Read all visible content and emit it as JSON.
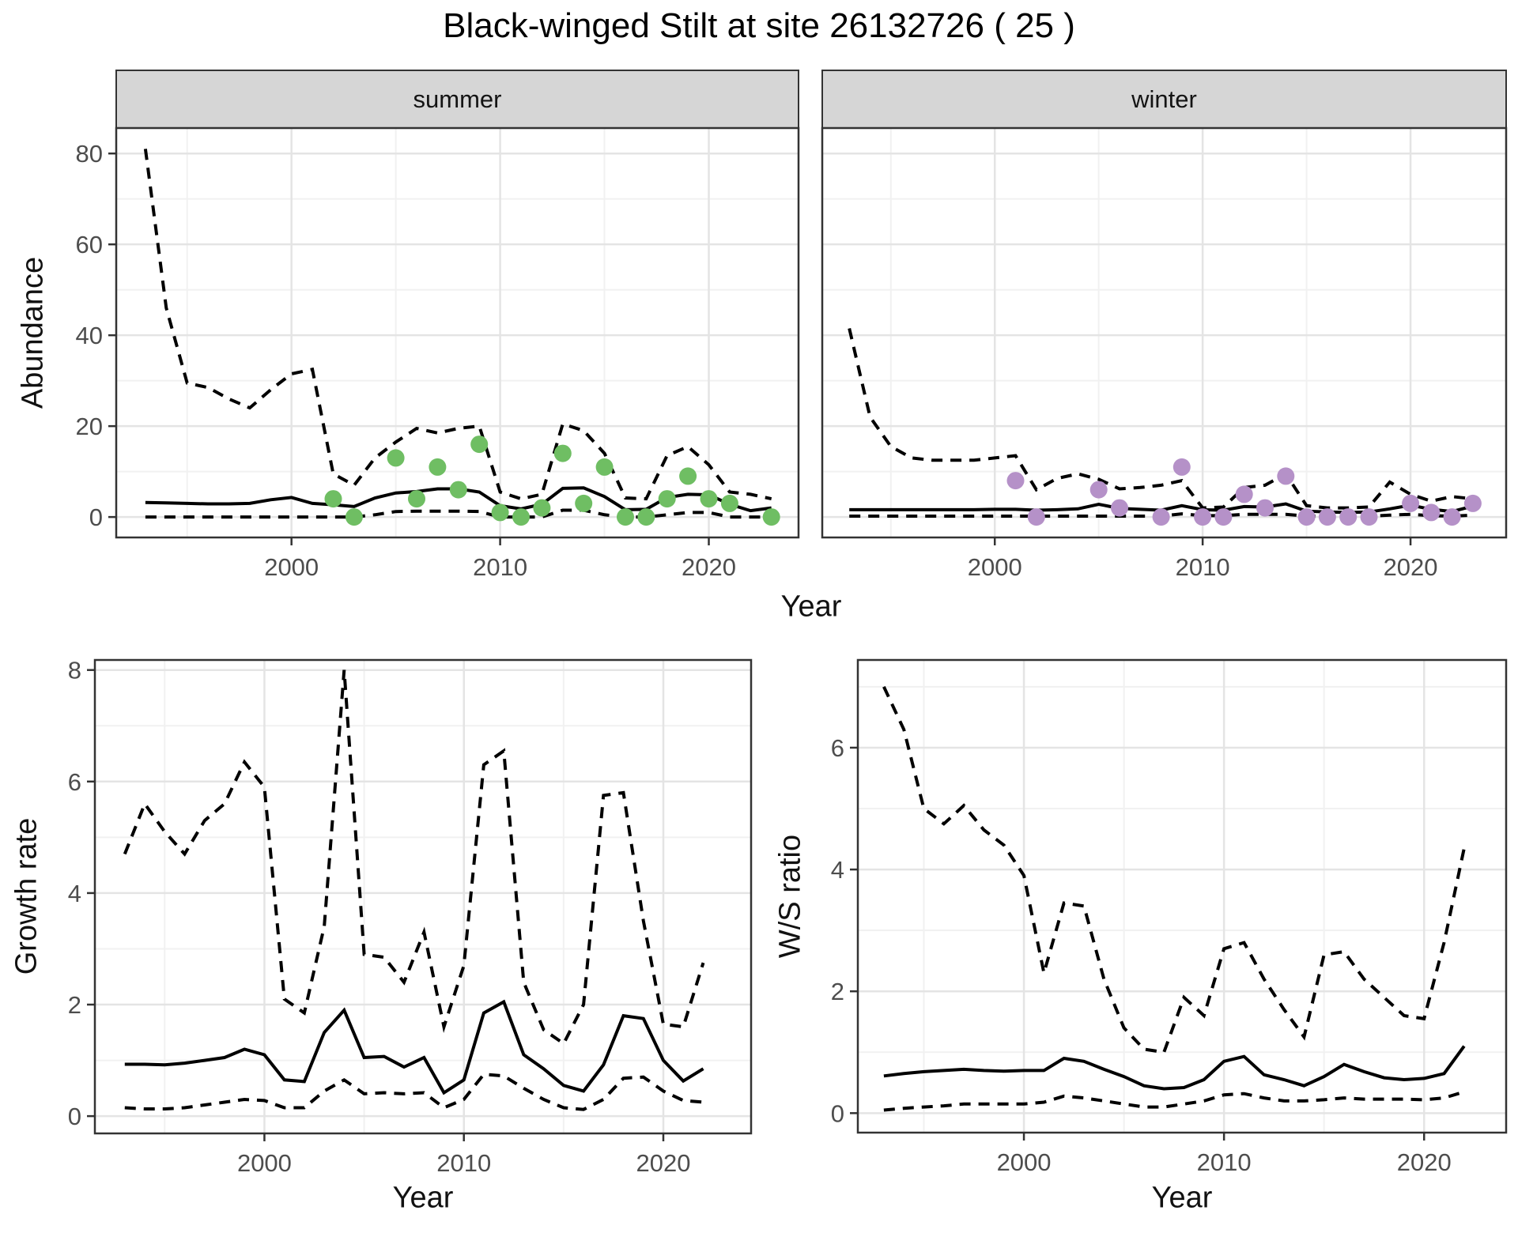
{
  "title": "Black-winged Stilt at site 26132726 ( 25 )",
  "labels": {
    "facet_summer": "summer",
    "facet_winter": "winter",
    "y_abundance": "Abundance",
    "y_growth": "Growth rate",
    "y_ws": "W/S ratio",
    "x_year_top": "Year",
    "x_year_growth": "Year",
    "x_year_ws": "Year"
  },
  "colors": {
    "summer_points": "#6FBE63",
    "winter_points": "#B591C8",
    "line": "#000000",
    "strip_bg": "#D6D6D6",
    "strip_border": "#333333",
    "panel_border": "#333333",
    "grid_major": "#E4E4E4",
    "grid_minor": "#F1F1F1",
    "tick_text": "#4D4D4D",
    "background": "#FFFFFF"
  },
  "chart_data": [
    {
      "id": "abundance_summer",
      "type": "line",
      "facet": "summer",
      "xlabel": "Year",
      "ylabel": "Abundance",
      "xlim": [
        1991.6,
        2024.3
      ],
      "ylim": [
        -4.5,
        85.6
      ],
      "xticks": [
        2000,
        2010,
        2020
      ],
      "xtick_labels": [
        "2000",
        "2010",
        "2020"
      ],
      "x_minor": [
        1995,
        2005,
        2015
      ],
      "yticks": [
        0,
        20,
        40,
        60,
        80
      ],
      "ytick_labels": [
        "0",
        "20",
        "40",
        "60",
        "80"
      ],
      "y_minor": [
        10,
        30,
        50,
        70
      ],
      "x": [
        1993,
        1994,
        1995,
        1996,
        1997,
        1998,
        1999,
        2000,
        2001,
        2002,
        2003,
        2004,
        2005,
        2006,
        2007,
        2008,
        2009,
        2010,
        2011,
        2012,
        2013,
        2014,
        2015,
        2016,
        2017,
        2018,
        2019,
        2020,
        2021,
        2022,
        2023
      ],
      "series": [
        {
          "name": "ci_upper_97.5",
          "style": "dashed",
          "values": [
            81,
            46,
            29.5,
            28.5,
            26,
            24,
            28,
            31.5,
            32.5,
            9.5,
            7,
            13,
            16.5,
            19.5,
            18.5,
            19.5,
            20,
            5.5,
            4,
            5,
            20.5,
            19,
            14,
            4.2,
            4,
            13.5,
            15.5,
            11.5,
            5.5,
            5,
            4
          ]
        },
        {
          "name": "ci_lower_2.5",
          "style": "dashed",
          "values": [
            0,
            0,
            0,
            0,
            0,
            0,
            0,
            0,
            0,
            0,
            0,
            0.5,
            1.2,
            1.3,
            1.3,
            1.3,
            1.2,
            0,
            0,
            0,
            1.5,
            1.5,
            0.5,
            0,
            0,
            0.5,
            1,
            1,
            0,
            0,
            0
          ]
        },
        {
          "name": "median",
          "style": "solid",
          "values": [
            3.2,
            3.1,
            3.0,
            2.9,
            2.9,
            3.0,
            3.8,
            4.3,
            3.0,
            2.7,
            2.3,
            4.2,
            5.3,
            5.6,
            6.2,
            6.2,
            5.5,
            2.5,
            1.8,
            2.8,
            6.3,
            6.4,
            4.5,
            1.6,
            1.7,
            4.3,
            5.0,
            4.9,
            2.8,
            1.4,
            2.0
          ]
        }
      ],
      "points": {
        "name": "observed_counts_summer",
        "color": "#6FBE63",
        "x": [
          2002,
          2003,
          2005,
          2006,
          2007,
          2008,
          2009,
          2010,
          2011,
          2012,
          2013,
          2014,
          2015,
          2016,
          2017,
          2018,
          2019,
          2020,
          2021,
          2023
        ],
        "y": [
          4,
          0,
          13,
          4,
          11,
          6,
          16,
          1,
          0,
          2,
          14,
          3,
          11,
          0,
          0,
          4,
          9,
          4,
          3,
          0
        ]
      }
    },
    {
      "id": "abundance_winter",
      "type": "line",
      "facet": "winter",
      "xlabel": "Year",
      "ylabel": "Abundance",
      "xlim": [
        1991.7,
        2024.6
      ],
      "ylim": [
        -4.5,
        85.6
      ],
      "xticks": [
        2000,
        2010,
        2020
      ],
      "xtick_labels": [
        "2000",
        "2010",
        "2020"
      ],
      "x_minor": [
        1995,
        2005,
        2015
      ],
      "yticks": [
        0,
        20,
        40,
        60,
        80
      ],
      "ytick_labels": [],
      "y_minor": [
        10,
        30,
        50,
        70
      ],
      "x": [
        1993,
        1994,
        1995,
        1996,
        1997,
        1998,
        1999,
        2000,
        2001,
        2002,
        2003,
        2004,
        2005,
        2006,
        2007,
        2008,
        2009,
        2010,
        2011,
        2012,
        2013,
        2014,
        2015,
        2016,
        2017,
        2018,
        2019,
        2020,
        2021,
        2022,
        2023
      ],
      "series": [
        {
          "name": "ci_upper_97.5",
          "style": "dashed",
          "values": [
            41.5,
            22,
            15.5,
            13,
            12.5,
            12.5,
            12.5,
            13,
            13.5,
            6,
            8.5,
            9.5,
            8.3,
            6.2,
            6.5,
            7,
            8,
            2,
            2.2,
            6.5,
            7,
            9.5,
            2.5,
            2,
            2,
            2.2,
            7.7,
            5,
            3.5,
            4.5,
            4
          ]
        },
        {
          "name": "ci_lower_2.5",
          "style": "dashed",
          "values": [
            0.2,
            0.2,
            0.2,
            0.2,
            0.2,
            0.2,
            0.2,
            0.2,
            0.2,
            0.2,
            0.2,
            0.2,
            0.2,
            0.2,
            0.2,
            0.2,
            0.7,
            0.3,
            0.3,
            0.6,
            0.6,
            0.6,
            0.2,
            0.2,
            0.2,
            0.2,
            0.4,
            0.6,
            0.3,
            0.2,
            0.4
          ]
        },
        {
          "name": "median",
          "style": "solid",
          "values": [
            1.6,
            1.6,
            1.6,
            1.6,
            1.6,
            1.6,
            1.6,
            1.7,
            1.7,
            1.5,
            1.6,
            1.8,
            2.8,
            1.9,
            1.7,
            1.5,
            2.5,
            1.6,
            1.5,
            2.3,
            2.2,
            2.9,
            1.3,
            1.1,
            1.0,
            1.1,
            1.8,
            2.6,
            1.7,
            1.2,
            2.4
          ]
        }
      ],
      "points": {
        "name": "observed_counts_winter",
        "color": "#B591C8",
        "x": [
          2001,
          2002,
          2005,
          2006,
          2008,
          2009,
          2010,
          2011,
          2012,
          2013,
          2014,
          2015,
          2016,
          2017,
          2018,
          2020,
          2021,
          2022,
          2023
        ],
        "y": [
          8,
          0,
          6,
          2,
          0,
          11,
          0,
          0,
          5,
          2,
          9,
          0,
          0,
          0,
          0,
          3,
          1,
          0,
          3
        ]
      }
    },
    {
      "id": "growth_rate",
      "type": "line",
      "facet": null,
      "xlabel": "Year",
      "ylabel": "Growth rate",
      "xlim": [
        1991.5,
        2024.4
      ],
      "ylim": [
        -0.31,
        8.18
      ],
      "xticks": [
        2000,
        2010,
        2020
      ],
      "xtick_labels": [
        "2000",
        "2010",
        "2020"
      ],
      "x_minor": [
        1995,
        2005,
        2015
      ],
      "yticks": [
        0,
        2,
        4,
        6,
        8
      ],
      "ytick_labels": [
        "0",
        "2",
        "4",
        "6",
        "8"
      ],
      "y_minor": [
        1,
        3,
        5,
        7
      ],
      "x": [
        1993,
        1994,
        1995,
        1996,
        1997,
        1998,
        1999,
        2000,
        2001,
        2002,
        2003,
        2004,
        2005,
        2006,
        2007,
        2008,
        2009,
        2010,
        2011,
        2012,
        2013,
        2014,
        2015,
        2016,
        2017,
        2018,
        2019,
        2020,
        2021,
        2022
      ],
      "series": [
        {
          "name": "ci_upper_97.5",
          "style": "dashed",
          "values": [
            4.7,
            5.6,
            5.1,
            4.7,
            5.3,
            5.6,
            6.35,
            5.9,
            2.1,
            1.85,
            3.4,
            8.0,
            2.9,
            2.85,
            2.4,
            3.3,
            1.6,
            2.7,
            6.3,
            6.55,
            2.4,
            1.55,
            1.3,
            2.0,
            5.75,
            5.8,
            3.5,
            1.65,
            1.6,
            2.75
          ]
        },
        {
          "name": "ci_lower_2.5",
          "style": "dashed",
          "values": [
            0.15,
            0.13,
            0.13,
            0.15,
            0.2,
            0.25,
            0.3,
            0.28,
            0.15,
            0.15,
            0.45,
            0.65,
            0.4,
            0.42,
            0.4,
            0.42,
            0.15,
            0.3,
            0.75,
            0.72,
            0.5,
            0.3,
            0.15,
            0.12,
            0.3,
            0.68,
            0.7,
            0.45,
            0.28,
            0.25
          ]
        },
        {
          "name": "median",
          "style": "solid",
          "values": [
            0.93,
            0.93,
            0.92,
            0.95,
            1.0,
            1.05,
            1.2,
            1.1,
            0.65,
            0.62,
            1.5,
            1.9,
            1.05,
            1.07,
            0.88,
            1.05,
            0.42,
            0.65,
            1.85,
            2.05,
            1.1,
            0.85,
            0.55,
            0.45,
            0.92,
            1.8,
            1.75,
            1.0,
            0.63,
            0.85
          ]
        }
      ],
      "points": null
    },
    {
      "id": "ws_ratio",
      "type": "line",
      "facet": null,
      "xlabel": "Year",
      "ylabel": "W/S ratio",
      "xlim": [
        1991.7,
        2024.1
      ],
      "ylim": [
        -0.32,
        7.44
      ],
      "xticks": [
        2000,
        2010,
        2020
      ],
      "xtick_labels": [
        "2000",
        "2010",
        "2020"
      ],
      "x_minor": [
        1995,
        2005,
        2015
      ],
      "yticks": [
        0,
        2,
        4,
        6
      ],
      "ytick_labels": [
        "0",
        "2",
        "4",
        "6"
      ],
      "y_minor": [
        1,
        3,
        5,
        7
      ],
      "x": [
        1993,
        1994,
        1995,
        1996,
        1997,
        1998,
        1999,
        2000,
        2001,
        2002,
        2003,
        2004,
        2005,
        2006,
        2007,
        2008,
        2009,
        2010,
        2011,
        2012,
        2013,
        2014,
        2015,
        2016,
        2017,
        2018,
        2019,
        2020,
        2021,
        2022
      ],
      "series": [
        {
          "name": "ci_upper_97.5",
          "style": "dashed",
          "values": [
            7.0,
            6.3,
            5.0,
            4.75,
            5.05,
            4.65,
            4.4,
            3.9,
            2.3,
            3.45,
            3.4,
            2.2,
            1.4,
            1.05,
            1.0,
            1.9,
            1.6,
            2.7,
            2.8,
            2.2,
            1.7,
            1.25,
            2.6,
            2.65,
            2.2,
            1.9,
            1.6,
            1.55,
            2.8,
            4.35
          ]
        },
        {
          "name": "ci_lower_2.5",
          "style": "dashed",
          "values": [
            0.05,
            0.08,
            0.1,
            0.12,
            0.15,
            0.15,
            0.15,
            0.15,
            0.18,
            0.28,
            0.25,
            0.2,
            0.15,
            0.1,
            0.1,
            0.15,
            0.2,
            0.3,
            0.32,
            0.25,
            0.2,
            0.2,
            0.22,
            0.25,
            0.23,
            0.23,
            0.23,
            0.22,
            0.25,
            0.35
          ]
        },
        {
          "name": "median",
          "style": "solid",
          "values": [
            0.61,
            0.65,
            0.68,
            0.7,
            0.72,
            0.7,
            0.69,
            0.7,
            0.7,
            0.9,
            0.85,
            0.72,
            0.6,
            0.45,
            0.4,
            0.42,
            0.55,
            0.85,
            0.93,
            0.63,
            0.55,
            0.45,
            0.6,
            0.8,
            0.68,
            0.58,
            0.55,
            0.57,
            0.65,
            1.1
          ]
        }
      ],
      "points": null
    }
  ]
}
